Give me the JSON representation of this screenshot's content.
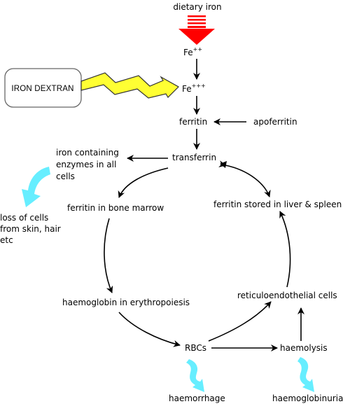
{
  "labels": {
    "dietary_iron": "dietary iron",
    "fe2_base": "Fe",
    "fe2_sup": "++",
    "fe3_base": "Fe",
    "fe3_sup": "+++",
    "iron_dextran": "IRON DEXTRAN",
    "ferritin": "ferritin",
    "apoferritin": "apoferritin",
    "transferrin": "transferrin",
    "enzymes_line1": "iron containing",
    "enzymes_line2": "enzymes in all",
    "enzymes_line3": "cells",
    "loss_line1": "loss of cells",
    "loss_line2": "from skin, hair",
    "loss_line3": "etc",
    "ferritin_marrow": "ferritin in bone marrow",
    "ferritin_liver": "ferritin stored in liver & spleen",
    "haemoglobin": "haemoglobin in erythropoiesis",
    "reticulo": "reticuloendothelial cells",
    "rbcs": "RBCs",
    "haemolysis": "haemolysis",
    "haemorrhage": "haemorrhage",
    "haemoglobinuria": "haemoglobinuria"
  },
  "colors": {
    "dietary_arrow": "#ff0000",
    "lightning": "#ffff33",
    "loss_arrow": "#66eeff",
    "line": "#000000"
  }
}
